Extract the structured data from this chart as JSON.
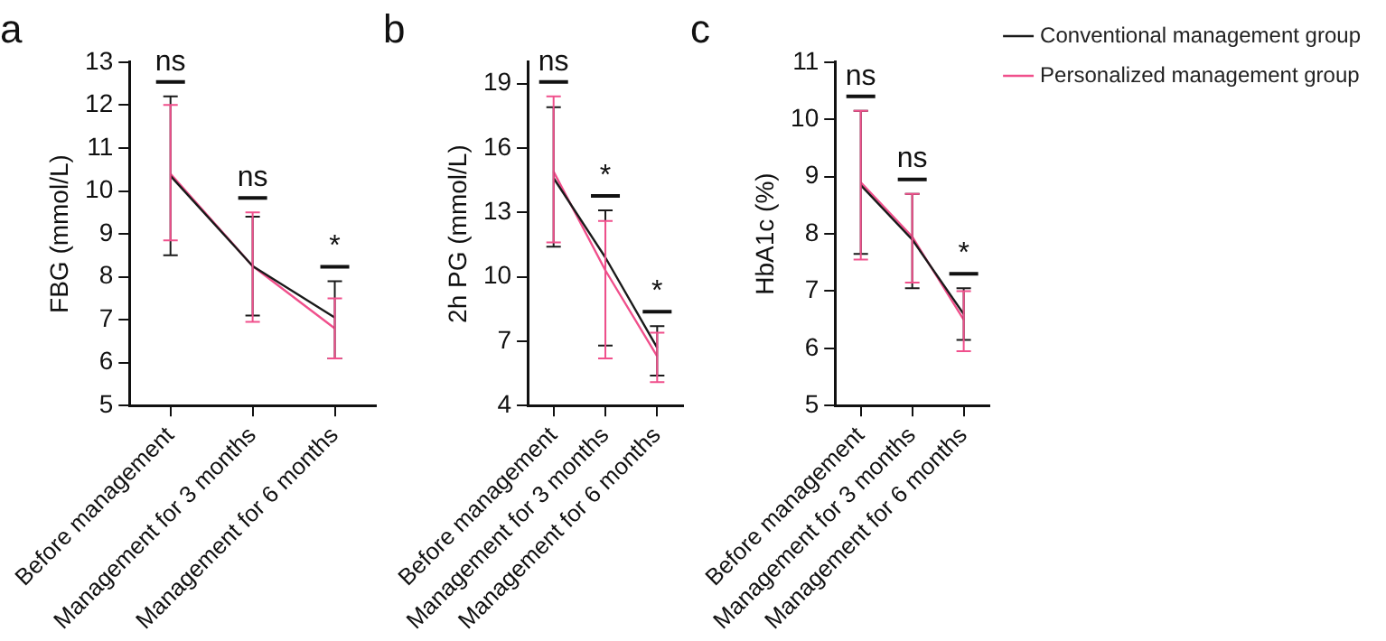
{
  "chart_data": [
    {
      "type": "line",
      "title": "a",
      "ylabel": "FBG (mmol/L)",
      "categories": [
        "Before management",
        "Management for 3 months",
        "Management for 6 months"
      ],
      "ylim": [
        5,
        13
      ],
      "yticks": [
        5,
        6,
        7,
        8,
        9,
        10,
        11,
        12,
        13
      ],
      "grid": false,
      "legend": false,
      "marker": "none",
      "series": [
        {
          "color": "#1a1a1a",
          "values": [
            10.35,
            8.25,
            7.05
          ],
          "errors": [
            [
              8.5,
              12.2
            ],
            [
              7.1,
              9.4
            ],
            [
              6.1,
              7.9
            ]
          ]
        },
        {
          "color": "#f0508c",
          "values": [
            10.4,
            8.25,
            6.8
          ],
          "errors": [
            [
              8.85,
              12.0
            ],
            [
              6.95,
              9.5
            ],
            [
              6.1,
              7.5
            ]
          ]
        }
      ],
      "annotations": [
        "ns",
        "ns",
        "*"
      ]
    },
    {
      "type": "line",
      "title": "b",
      "ylabel": "2h PG (mmol/L)",
      "categories": [
        "Before management",
        "Management for 3 months",
        "Management for 6 months"
      ],
      "ylim": [
        4,
        20
      ],
      "yticks": [
        4,
        7,
        10,
        13,
        16,
        19
      ],
      "grid": false,
      "legend": false,
      "marker": "none",
      "series": [
        {
          "color": "#1a1a1a",
          "values": [
            14.6,
            10.9,
            6.7
          ],
          "errors": [
            [
              11.4,
              17.9
            ],
            [
              6.8,
              13.1
            ],
            [
              5.4,
              7.7
            ]
          ]
        },
        {
          "color": "#f0508c",
          "values": [
            14.9,
            10.3,
            6.3
          ],
          "errors": [
            [
              11.6,
              18.4
            ],
            [
              6.2,
              12.6
            ],
            [
              5.1,
              7.4
            ]
          ]
        }
      ],
      "annotations": [
        "ns",
        "*",
        "*"
      ]
    },
    {
      "type": "line",
      "title": "c",
      "ylabel": "HbA1c (%)",
      "categories": [
        "Before management",
        "Management for 3 months",
        "Management for 6 months"
      ],
      "ylim": [
        5,
        11
      ],
      "yticks": [
        5,
        6,
        7,
        8,
        9,
        10,
        11
      ],
      "grid": false,
      "legend": "right",
      "marker": "none",
      "series": [
        {
          "name": "Conventional management group",
          "color": "#1a1a1a",
          "values": [
            8.85,
            7.9,
            6.6
          ],
          "errors": [
            [
              7.65,
              10.15
            ],
            [
              7.05,
              8.7
            ],
            [
              6.15,
              7.05
            ]
          ]
        },
        {
          "name": "Personalized management group",
          "color": "#f0508c",
          "values": [
            8.9,
            7.95,
            6.5
          ],
          "errors": [
            [
              7.55,
              10.15
            ],
            [
              7.15,
              8.7
            ],
            [
              5.95,
              7.0
            ]
          ]
        }
      ],
      "annotations": [
        "ns",
        "ns",
        "*"
      ]
    }
  ]
}
